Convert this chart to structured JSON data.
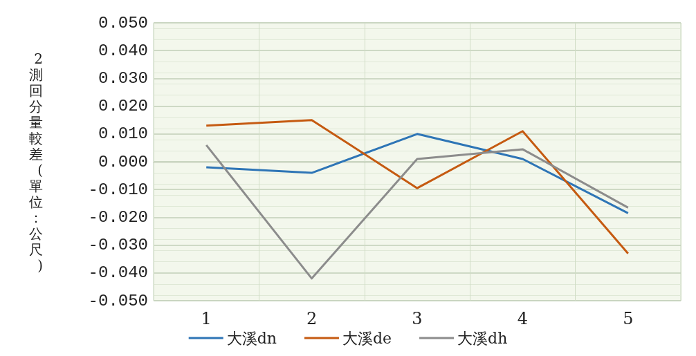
{
  "chart_data": {
    "type": "line",
    "ylabel": "2測回分量較差(單位：公尺)",
    "categories": [
      "1",
      "2",
      "3",
      "4",
      "5"
    ],
    "series": [
      {
        "name": "大溪dn",
        "color": "#2e75b6",
        "values": [
          -0.002,
          -0.004,
          0.01,
          0.001,
          -0.0185
        ]
      },
      {
        "name": "大溪de",
        "color": "#c55a11",
        "values": [
          0.013,
          0.015,
          -0.0095,
          0.011,
          -0.033
        ]
      },
      {
        "name": "大溪dh",
        "color": "#8c8c8c",
        "values": [
          0.006,
          -0.042,
          0.001,
          0.0045,
          -0.0165
        ]
      }
    ],
    "ylim": [
      -0.05,
      0.05
    ],
    "yticks": [
      {
        "value": -0.05,
        "label": "-0.050"
      },
      {
        "value": -0.04,
        "label": "-0.040"
      },
      {
        "value": -0.03,
        "label": "-0.030"
      },
      {
        "value": -0.02,
        "label": "-0.020"
      },
      {
        "value": -0.01,
        "label": "-0.010"
      },
      {
        "value": 0,
        "label": "0.000"
      },
      {
        "value": 0.01,
        "label": "0.010"
      },
      {
        "value": 0.02,
        "label": "0.020"
      },
      {
        "value": 0.03,
        "label": "0.030"
      },
      {
        "value": 0.04,
        "label": "0.040"
      },
      {
        "value": 0.05,
        "label": "0.050"
      }
    ],
    "grid": true,
    "legend": "bottom",
    "marker": "none",
    "line_style": "solid"
  }
}
